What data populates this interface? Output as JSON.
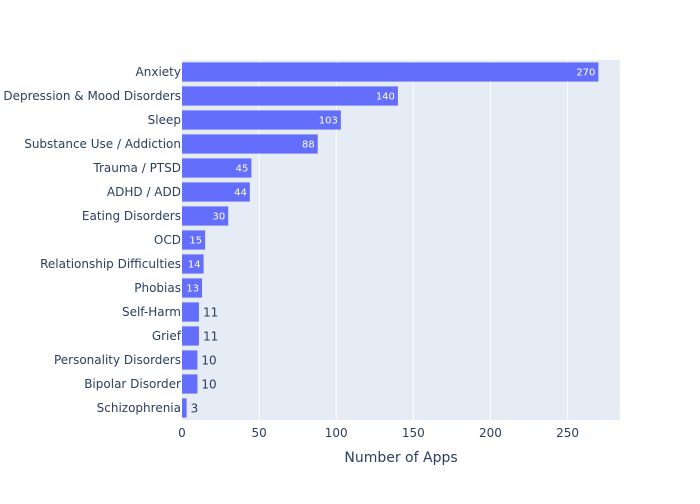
{
  "chart_data": {
    "type": "bar",
    "orientation": "horizontal",
    "categories": [
      "Anxiety",
      "Depression & Mood Disorders",
      "Sleep",
      "Substance Use / Addiction",
      "Trauma / PTSD",
      "ADHD / ADD",
      "Eating Disorders",
      "OCD",
      "Relationship Difficulties",
      "Phobias",
      "Self-Harm",
      "Grief",
      "Personality Disorders",
      "Bipolar Disorder",
      "Schizophrenia"
    ],
    "values": [
      270,
      140,
      103,
      88,
      45,
      44,
      30,
      15,
      14,
      13,
      11,
      11,
      10,
      10,
      3
    ],
    "data_labels": [
      "270",
      "140",
      "103",
      "88",
      "45",
      "44",
      "30",
      "15",
      "14",
      "13",
      "11",
      "11",
      "10",
      "10",
      "3"
    ],
    "xlabel": "Number of Apps",
    "ylabel": "",
    "xlim": [
      0,
      284
    ],
    "x_ticks": [
      0,
      50,
      100,
      150,
      200,
      250
    ],
    "x_tick_labels": [
      "0",
      "50",
      "100",
      "150",
      "200",
      "250"
    ],
    "grid": true,
    "legend": "none",
    "colors": {
      "bar": "#636efa",
      "plot_bg": "#e5ecf6",
      "grid": "#ffffff",
      "text": "#2a3f5f"
    }
  }
}
